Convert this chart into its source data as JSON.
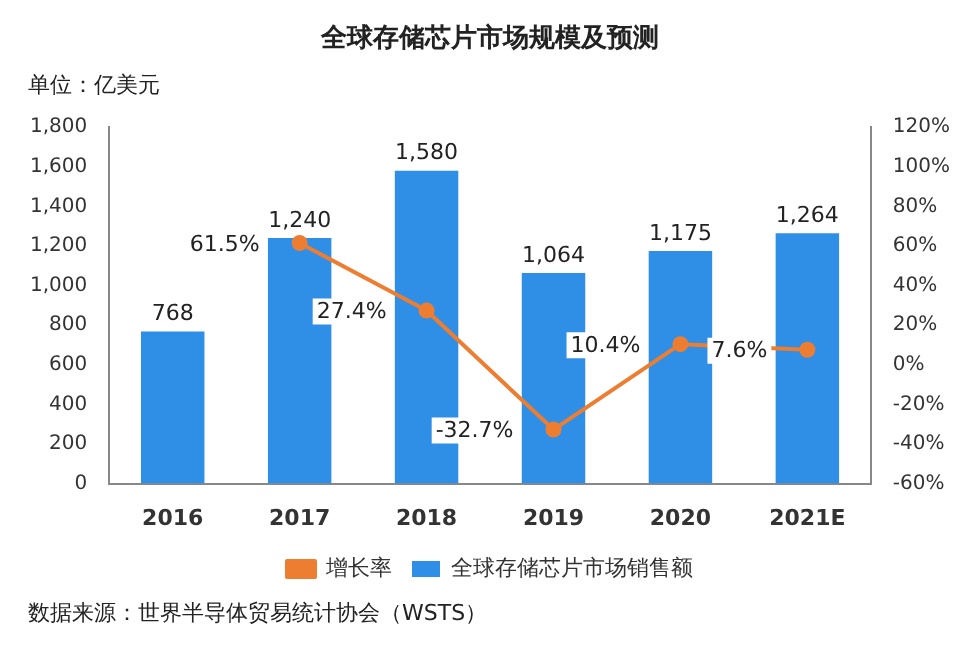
{
  "chart_data": {
    "type": "bar",
    "title": "全球存储芯片市场规模及预测",
    "categories": [
      "2016",
      "2017",
      "2018",
      "2019",
      "2020",
      "2021E"
    ],
    "series": [
      {
        "name": "全球存储芯片市场销售额",
        "color": "#2f8fe6",
        "values": [
          768,
          1240,
          1580,
          1064,
          1175,
          1264
        ],
        "value_labels": [
          "768",
          "1,240",
          "1,580",
          "1,064",
          "1,175",
          "1,264"
        ]
      },
      {
        "name": "增长率",
        "type": "line",
        "axis": "y2",
        "color": "#ed7d31",
        "marker": "circle",
        "values": [
          null,
          61.5,
          27.4,
          -32.7,
          10.4,
          7.6
        ],
        "value_labels": [
          null,
          "61.5%",
          "27.4%",
          "-32.7%",
          "10.4%",
          "7.6%"
        ]
      }
    ],
    "ylim": [
      0,
      1800
    ],
    "yticks": [
      0,
      200,
      400,
      600,
      800,
      {
        "value": 1000,
        "label": "1,000"
      },
      {
        "value": 1200,
        "label": "1,200"
      },
      {
        "value": 1400,
        "label": "1,400"
      },
      {
        "value": 1600,
        "label": "1,600"
      },
      {
        "value": 1800,
        "label": "1,800"
      }
    ],
    "y2lim": [
      -60,
      120
    ],
    "y2ticks": [
      {
        "value": -60,
        "label": "-60%"
      },
      {
        "value": -40,
        "label": "-40%"
      },
      {
        "value": -20,
        "label": "-20%"
      },
      {
        "value": 0,
        "label": "0%"
      },
      {
        "value": 20,
        "label": "20%"
      },
      {
        "value": 40,
        "label": "40%"
      },
      {
        "value": 60,
        "label": "60%"
      },
      {
        "value": 80,
        "label": "80%"
      },
      {
        "value": 100,
        "label": "100%"
      },
      {
        "value": 120,
        "label": "120%"
      }
    ],
    "grid": false,
    "legend": "bottom",
    "annotations": [
      "单位：亿美元",
      "数据来源：世界半导体贸易统计协会（WSTS）"
    ]
  }
}
